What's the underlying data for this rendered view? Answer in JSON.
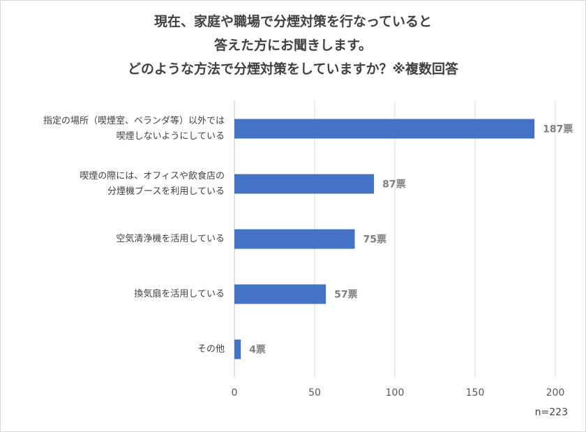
{
  "chart_data": {
    "type": "bar",
    "orientation": "horizontal",
    "title_lines": [
      "現在、家庭や職場で分煙対策を行なっていると",
      "答えた方にお聞きします。",
      "どのような方法で分煙対策をしていますか？※複数回答"
    ],
    "categories": [
      [
        "指定の場所（喫煙室、ベランダ等）以外では",
        "喫煙しないようにしている"
      ],
      [
        "喫煙の際には、オフィスや飲食店の",
        "分煙機ブースを利用している"
      ],
      [
        "空気清浄機を活用している"
      ],
      [
        "換気扇を活用している"
      ],
      [
        "その他"
      ]
    ],
    "values": [
      187,
      87,
      75,
      57,
      4
    ],
    "value_labels": [
      "187票",
      "87票",
      "75票",
      "57票",
      "4票"
    ],
    "xlim": [
      0,
      200
    ],
    "x_ticks": [
      0,
      50,
      100,
      150,
      200
    ],
    "x_tick_labels": [
      "0",
      "50",
      "100",
      "150",
      "200"
    ],
    "grid": true,
    "bar_color": "#4472c4",
    "grid_color": "#d9d9d9",
    "note": "n=223"
  }
}
